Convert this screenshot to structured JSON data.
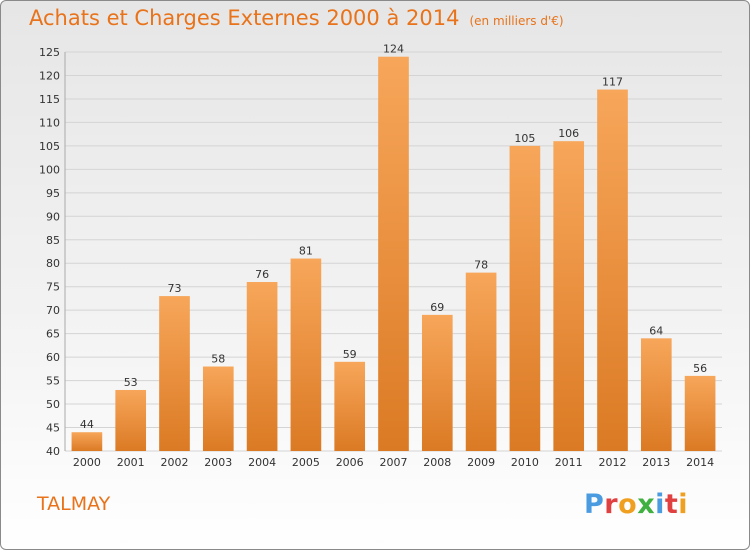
{
  "colors": {
    "title": "#e8731a",
    "bar_light": "#f7a65a",
    "bar_dark": "#db7a24",
    "grid": "#d4d4d4",
    "axis_text": "#333333",
    "logo": [
      "#4a9be0",
      "#e04040",
      "#f0a020",
      "#40b040",
      "#4a9be0",
      "#e04040",
      "#f0a020"
    ]
  },
  "title": "Achats et Charges Externes 2000 à 2014",
  "subtitle": "(en milliers d'€)",
  "commune": "TALMAY",
  "logo": {
    "text": "Proxiti",
    "letters": [
      "P",
      "r",
      "o",
      "x",
      "i",
      "t",
      "i"
    ]
  },
  "chart_data": {
    "type": "bar",
    "title": "Achats et Charges Externes 2000 à 2014",
    "subtitle": "(en milliers d'€)",
    "categories": [
      "2000",
      "2001",
      "2002",
      "2003",
      "2004",
      "2005",
      "2006",
      "2007",
      "2008",
      "2009",
      "2010",
      "2011",
      "2012",
      "2013",
      "2014"
    ],
    "values": [
      44,
      53,
      73,
      58,
      76,
      81,
      59,
      124,
      69,
      78,
      105,
      106,
      117,
      64,
      56
    ],
    "ylim": [
      40,
      125
    ],
    "yticks": [
      40,
      45,
      50,
      55,
      60,
      65,
      70,
      75,
      80,
      85,
      90,
      95,
      100,
      105,
      110,
      115,
      120,
      125
    ],
    "xlabel": "",
    "ylabel": "",
    "grid": true,
    "legend": "none"
  }
}
